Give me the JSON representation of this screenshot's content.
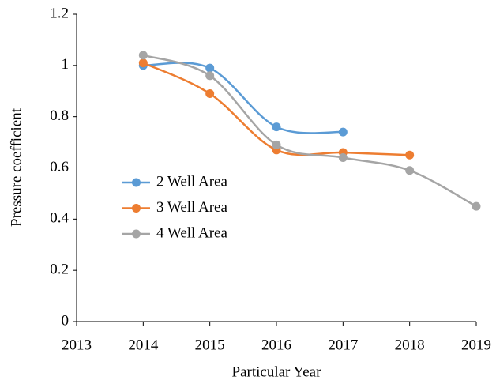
{
  "chart_data": {
    "type": "line",
    "x_label": "Particular Year",
    "y_label": "Pressure coefficient",
    "x": [
      2014,
      2015,
      2016,
      2017,
      2018,
      2019
    ],
    "series": [
      {
        "name": "2 Well Area",
        "color": "#5b9bd5",
        "values": [
          1.0,
          0.99,
          0.76,
          0.74,
          null,
          null
        ]
      },
      {
        "name": "3 Well Area",
        "color": "#ed7d31",
        "values": [
          1.01,
          0.89,
          0.67,
          0.66,
          0.65,
          null
        ]
      },
      {
        "name": "4 Well Area",
        "color": "#a5a5a5",
        "values": [
          1.04,
          0.96,
          0.69,
          0.64,
          0.59,
          0.45
        ]
      }
    ],
    "xlim": [
      2013,
      2019
    ],
    "xticks": [
      2013,
      2014,
      2015,
      2016,
      2017,
      2018,
      2019
    ],
    "ylim": [
      0,
      1.2
    ],
    "yticks": [
      0,
      0.2,
      0.4,
      0.6,
      0.8,
      1,
      1.2
    ],
    "grid": false,
    "legend": "left"
  }
}
